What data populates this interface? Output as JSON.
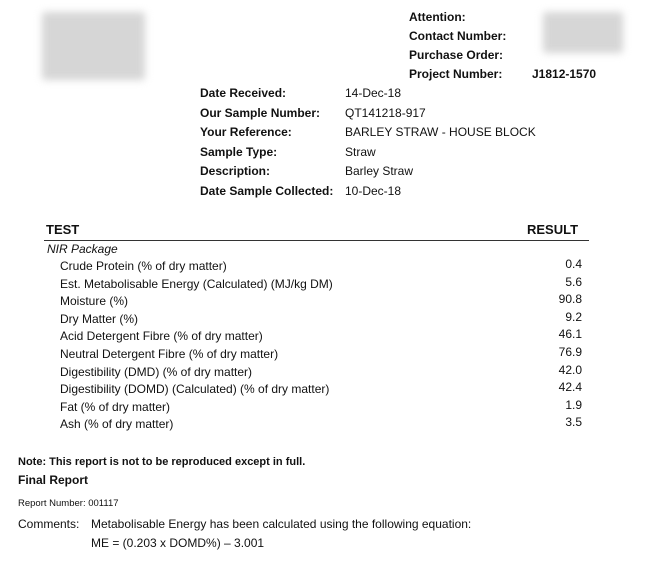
{
  "header": {
    "attention_label": "Attention:",
    "contact_label": "Contact Number:",
    "po_label": "Purchase Order:",
    "project_label": "Project Number:",
    "project_value": "J1812-1570"
  },
  "sample": [
    {
      "label": "Date Received:",
      "value": "14-Dec-18"
    },
    {
      "label": "Our Sample Number:",
      "value": "QT141218-917"
    },
    {
      "label": "Your Reference:",
      "value": "BARLEY STRAW - HOUSE BLOCK"
    },
    {
      "label": "Sample Type:",
      "value": "Straw"
    },
    {
      "label": "Description:",
      "value": "Barley Straw"
    },
    {
      "label": "Date Sample Collected:",
      "value": "10-Dec-18"
    }
  ],
  "table": {
    "test_header": "TEST",
    "result_header": "RESULT",
    "package": "NIR Package",
    "rows": [
      {
        "test": "Crude Protein (% of dry matter)",
        "result": "0.4"
      },
      {
        "test": "Est. Metabolisable Energy (Calculated) (MJ/kg DM)",
        "result": "5.6"
      },
      {
        "test": "Moisture (%)",
        "result": "90.8"
      },
      {
        "test": "Dry Matter (%)",
        "result": "9.2"
      },
      {
        "test": "Acid Detergent Fibre (% of dry matter)",
        "result": "46.1"
      },
      {
        "test": "Neutral Detergent Fibre (% of dry matter)",
        "result": "76.9"
      },
      {
        "test": "Digestibility (DMD) (% of dry matter)",
        "result": "42.0"
      },
      {
        "test": "Digestibility (DOMD) (Calculated) (% of dry matter)",
        "result": "42.4"
      },
      {
        "test": "Fat (% of dry matter)",
        "result": "1.9"
      },
      {
        "test": "Ash (% of dry matter)",
        "result": "3.5"
      }
    ]
  },
  "footer": {
    "note": "Note:  This report is not to be reproduced except in full.",
    "final": "Final Report",
    "report_number": "Report Number: 001117",
    "comments_label": "Comments:",
    "comments_text": "Metabolisable Energy has been calculated using the following equation:",
    "equation": "ME = (0.203 x DOMD%) – 3.001"
  }
}
